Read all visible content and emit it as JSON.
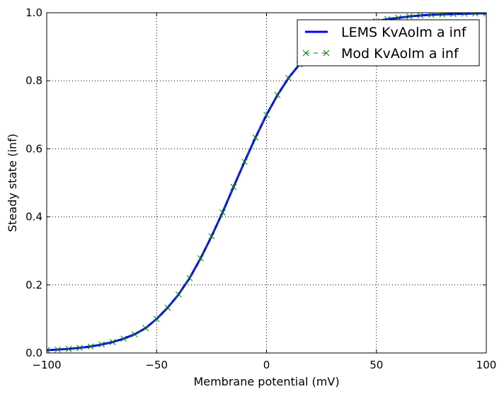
{
  "chart_data": {
    "type": "line",
    "xlabel": "Membrane potential (mV)",
    "ylabel": "Steady state (inf)",
    "xlim": [
      -100,
      100
    ],
    "ylim": [
      0.0,
      1.0
    ],
    "xticks": [
      -100,
      -50,
      0,
      50,
      100
    ],
    "xtick_labels": [
      "−100",
      "−50",
      "0",
      "50",
      "100"
    ],
    "yticks": [
      0.0,
      0.2,
      0.4,
      0.6,
      0.8,
      1.0
    ],
    "ytick_labels": [
      "0.0",
      "0.2",
      "0.4",
      "0.6",
      "0.8",
      "1.0"
    ],
    "grid": true,
    "legend_position": "top-right",
    "series": [
      {
        "name": "LEMS KvAolm a inf",
        "style": "solid line",
        "color": "#0000ff",
        "x": [
          -100,
          -95,
          -90,
          -85,
          -80,
          -75,
          -70,
          -65,
          -60,
          -55,
          -50,
          -45,
          -40,
          -35,
          -30,
          -25,
          -20,
          -15,
          -10,
          -5,
          0,
          5,
          10,
          15,
          20,
          25,
          30,
          35,
          40,
          45,
          50,
          55,
          60,
          65,
          70,
          75,
          80,
          85,
          90,
          95,
          100
        ],
        "y": [
          0.008,
          0.01,
          0.012,
          0.015,
          0.019,
          0.025,
          0.032,
          0.042,
          0.055,
          0.073,
          0.1,
          0.133,
          0.172,
          0.22,
          0.278,
          0.343,
          0.413,
          0.488,
          0.562,
          0.633,
          0.7,
          0.758,
          0.808,
          0.848,
          0.882,
          0.908,
          0.928,
          0.944,
          0.956,
          0.966,
          0.975,
          0.981,
          0.985,
          0.989,
          0.992,
          0.994,
          0.995,
          0.996,
          0.997,
          0.998,
          0.998
        ]
      },
      {
        "name": "Mod KvAolm a inf",
        "style": "dashed line with x markers",
        "color": "#008000",
        "x": [
          -100,
          -95,
          -90,
          -85,
          -80,
          -75,
          -70,
          -65,
          -60,
          -55,
          -50,
          -45,
          -40,
          -35,
          -30,
          -25,
          -20,
          -15,
          -10,
          -5,
          0,
          5,
          10,
          15,
          20,
          25,
          30,
          35,
          40,
          45,
          50,
          55,
          60,
          65,
          70,
          75,
          80,
          85,
          90,
          95,
          100
        ],
        "y": [
          0.008,
          0.01,
          0.012,
          0.015,
          0.019,
          0.025,
          0.032,
          0.042,
          0.055,
          0.073,
          0.1,
          0.133,
          0.172,
          0.22,
          0.278,
          0.343,
          0.413,
          0.488,
          0.562,
          0.633,
          0.7,
          0.758,
          0.808,
          0.848,
          0.882,
          0.908,
          0.928,
          0.944,
          0.956,
          0.966,
          0.975,
          0.981,
          0.985,
          0.989,
          0.992,
          0.994,
          0.995,
          0.996,
          0.997,
          0.998,
          0.998
        ]
      }
    ]
  }
}
